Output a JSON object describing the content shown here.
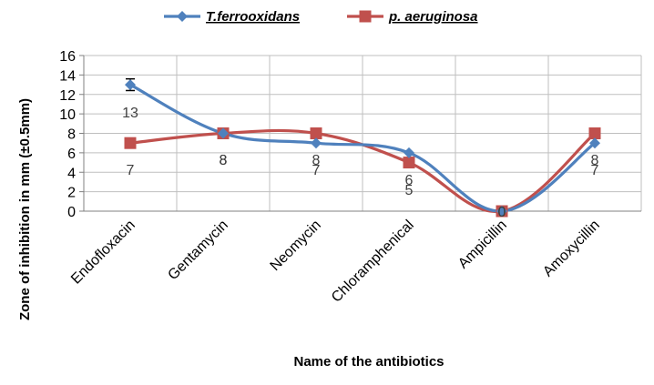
{
  "chart_data": {
    "type": "line",
    "title": "",
    "xlabel": "Name of the antibiotics",
    "ylabel": "Zone of inhibition in mm (±0.5mm)",
    "ylim": [
      0,
      16
    ],
    "yticks": [
      0,
      2,
      4,
      6,
      8,
      10,
      12,
      14,
      16
    ],
    "grid": true,
    "legend_position": "top",
    "categories": [
      "Endofloxacin",
      "Gentamycin",
      "Neomycin",
      "Chloramphenical",
      "Ampicillin",
      "Amoxycillin"
    ],
    "series": [
      {
        "name": "T.ferrooxidans",
        "values": [
          13,
          8,
          7,
          6,
          0,
          7
        ],
        "labels": [
          "13",
          "8",
          "7",
          "6",
          "0",
          "7"
        ],
        "color": "#4F81BD",
        "marker": "diamond",
        "error": [
          0.6,
          0,
          0,
          0,
          0,
          0
        ]
      },
      {
        "name": "p. aeruginosa",
        "values": [
          7,
          8,
          8,
          5,
          0,
          8
        ],
        "labels": [
          "7",
          "8",
          "8",
          "5",
          "0",
          "8"
        ],
        "color": "#C0504D",
        "marker": "square"
      }
    ]
  }
}
